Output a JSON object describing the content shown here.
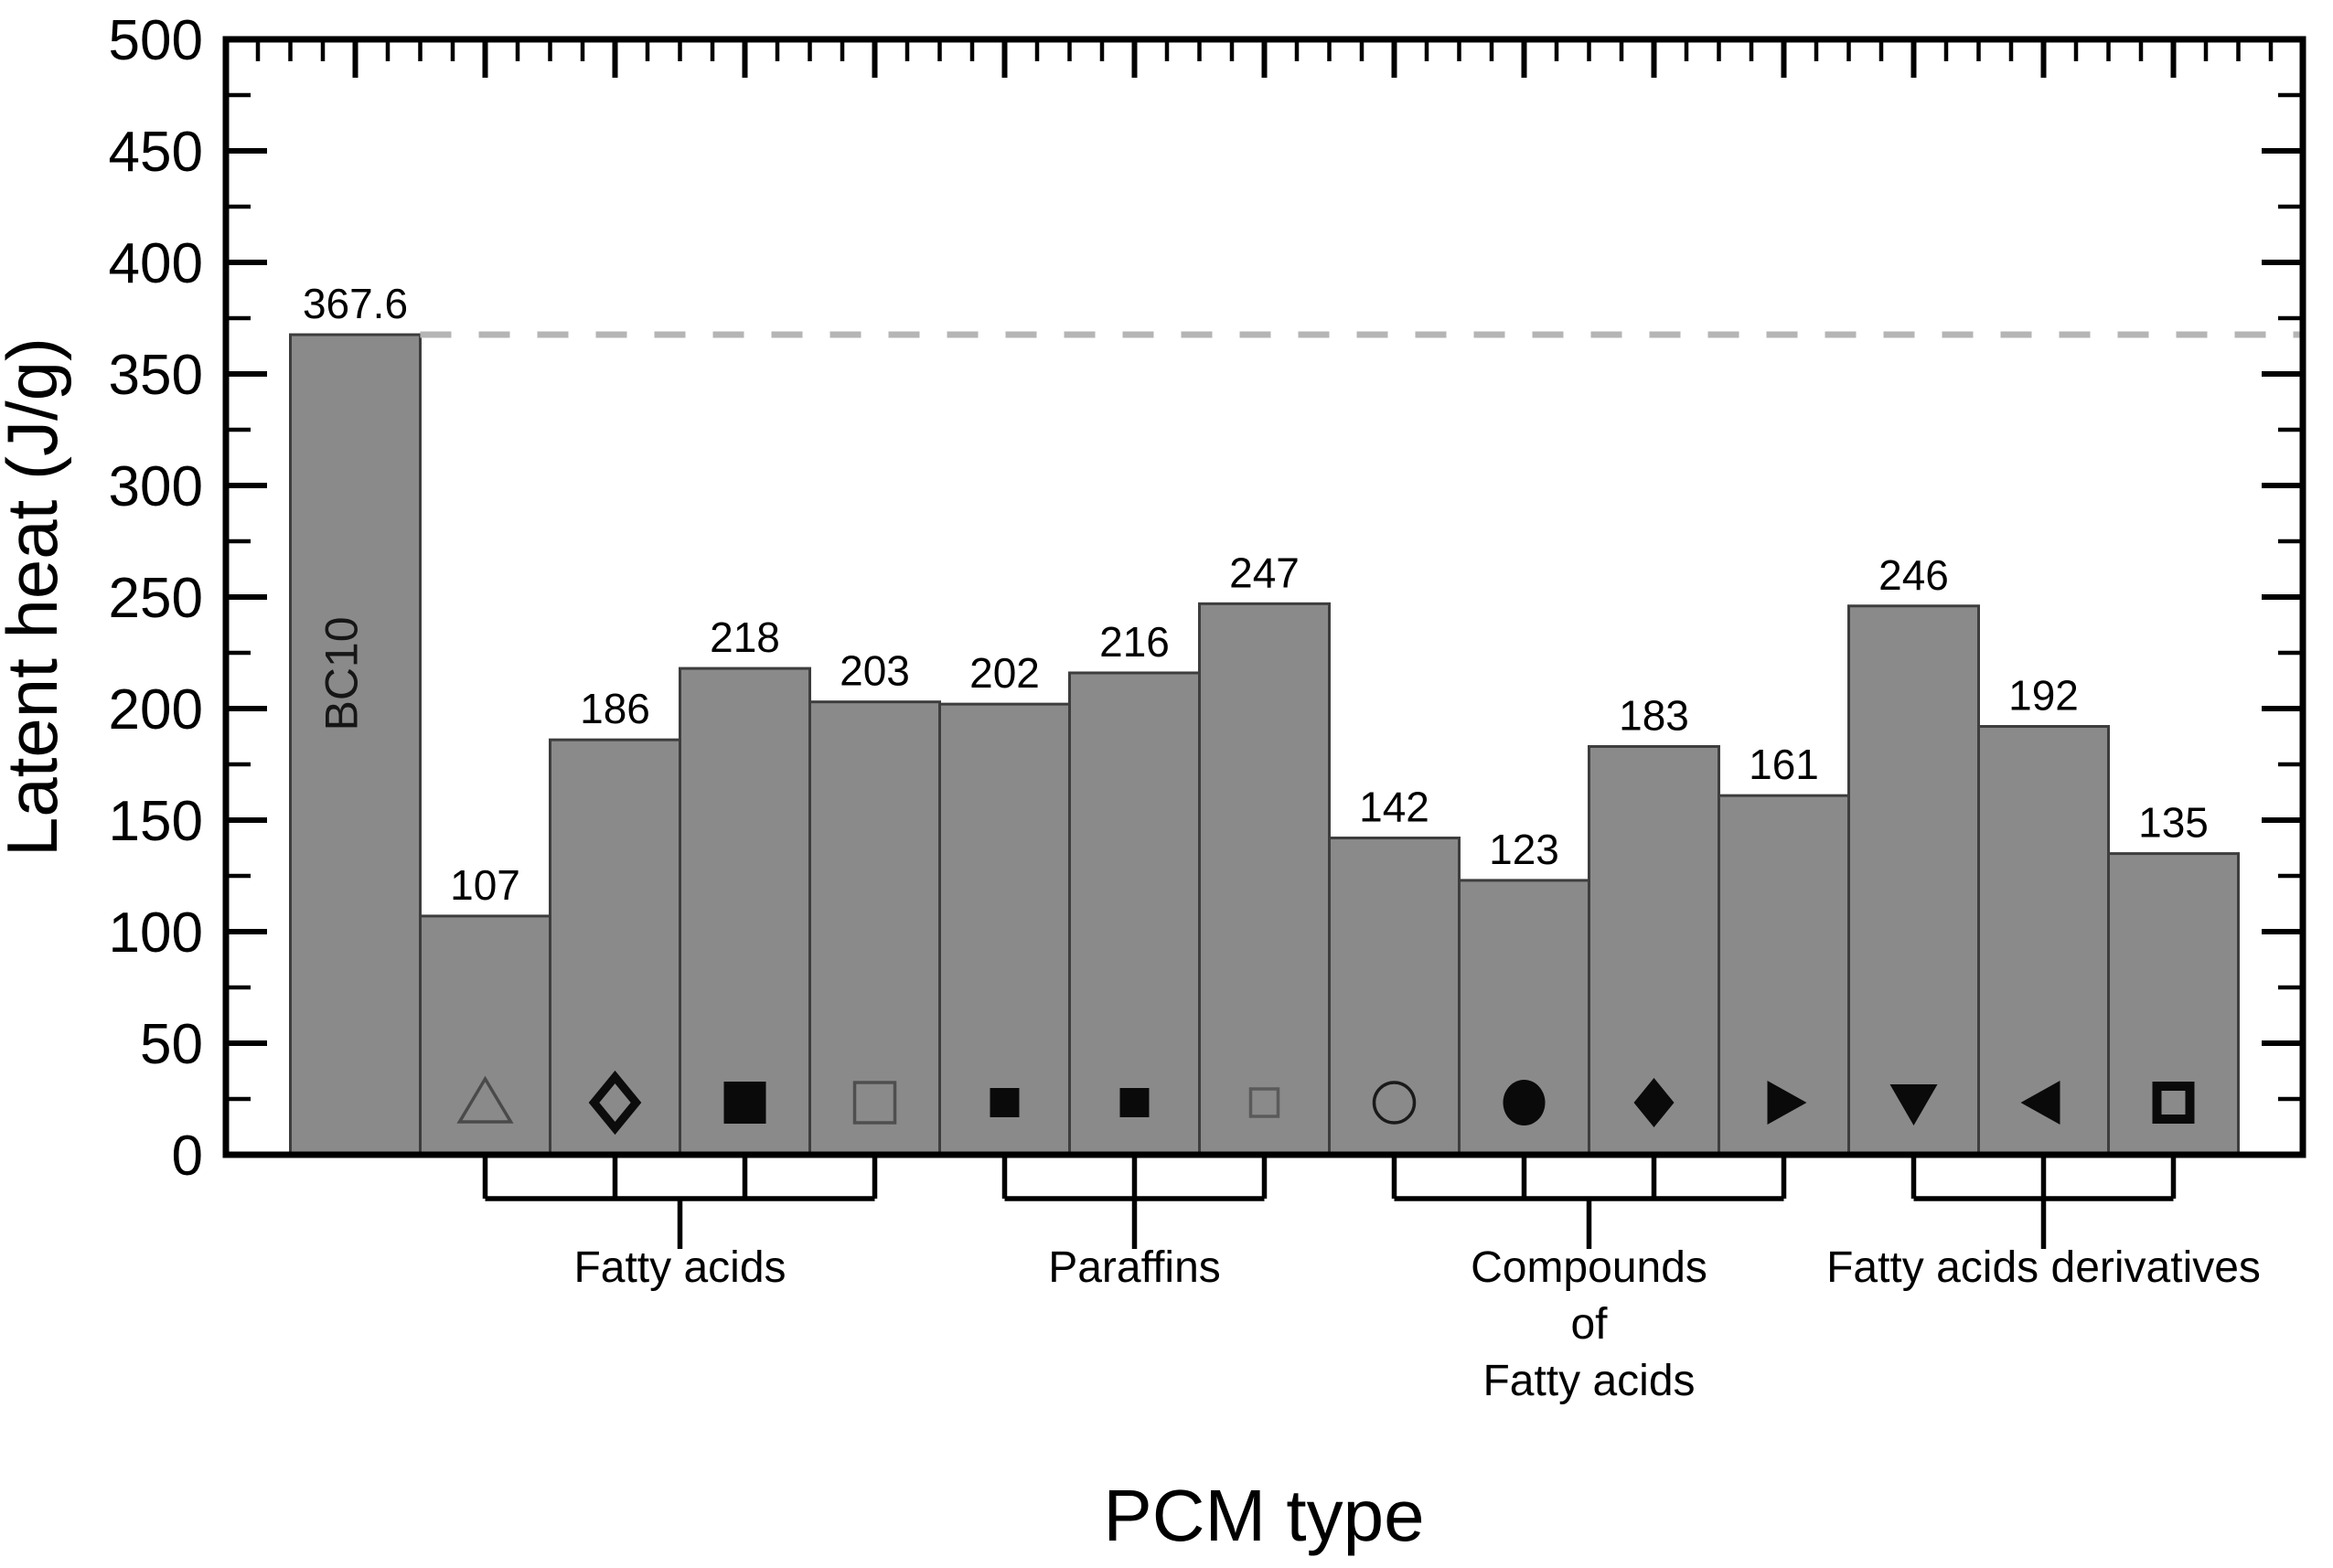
{
  "chart_data": {
    "type": "bar",
    "title": "",
    "xlabel": "PCM type",
    "ylabel": "Latent heat (J/g)",
    "ylim": [
      0,
      500
    ],
    "y_major_step": 50,
    "y_minor_step": 25,
    "y_tick_labels": [
      "0",
      "50",
      "100",
      "150",
      "200",
      "250",
      "300",
      "350",
      "400",
      "450",
      "500"
    ],
    "grid": false,
    "legend": "none",
    "bar_fill": "#8a8a8a",
    "bar_edge": "#3d3d3d",
    "reference_line": {
      "value": 367.6,
      "style": "dashed",
      "color": "#b5b5b5"
    },
    "bars": [
      {
        "value": 367.6,
        "label": "367.6",
        "symbol": "none",
        "bar_text": "BC10"
      },
      {
        "value": 107,
        "label": "107",
        "symbol": "triangle-up-open"
      },
      {
        "value": 186,
        "label": "186",
        "symbol": "diamond-open-bold"
      },
      {
        "value": 218,
        "label": "218",
        "symbol": "square-filled"
      },
      {
        "value": 203,
        "label": "203",
        "symbol": "square-open"
      },
      {
        "value": 202,
        "label": "202",
        "symbol": "square-filled-small"
      },
      {
        "value": 216,
        "label": "216",
        "symbol": "square-filled-small"
      },
      {
        "value": 247,
        "label": "247",
        "symbol": "square-open-small"
      },
      {
        "value": 142,
        "label": "142",
        "symbol": "circle-open"
      },
      {
        "value": 123,
        "label": "123",
        "symbol": "circle-filled"
      },
      {
        "value": 183,
        "label": "183",
        "symbol": "diamond-filled"
      },
      {
        "value": 161,
        "label": "161",
        "symbol": "triangle-right-filled"
      },
      {
        "value": 246,
        "label": "246",
        "symbol": "triangle-down-filled"
      },
      {
        "value": 192,
        "label": "192",
        "symbol": "triangle-left-filled"
      },
      {
        "value": 135,
        "label": "135",
        "symbol": "square-open-bold"
      }
    ],
    "groups": [
      {
        "label_lines": [
          "Fatty acids"
        ],
        "start": 1,
        "end": 4
      },
      {
        "label_lines": [
          "Paraffins"
        ],
        "start": 5,
        "end": 7
      },
      {
        "label_lines": [
          "Compounds",
          "of",
          "Fatty acids"
        ],
        "start": 8,
        "end": 11
      },
      {
        "label_lines": [
          "Fatty acids derivatives"
        ],
        "start": 12,
        "end": 14
      }
    ]
  }
}
